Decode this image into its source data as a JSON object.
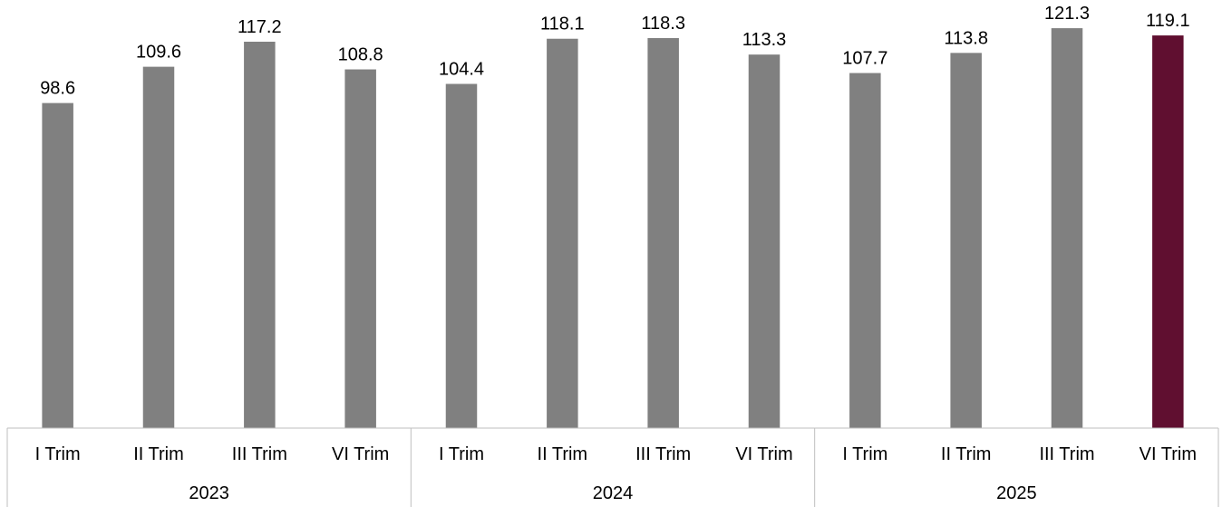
{
  "chart_data": {
    "type": "bar",
    "categories": [
      {
        "label": "I Trim",
        "year": "2023"
      },
      {
        "label": "II Trim",
        "year": "2023"
      },
      {
        "label": "III Trim",
        "year": "2023"
      },
      {
        "label": "VI Trim",
        "year": "2023"
      },
      {
        "label": "I Trim",
        "year": "2024"
      },
      {
        "label": "II Trim",
        "year": "2024"
      },
      {
        "label": "III Trim",
        "year": "2024"
      },
      {
        "label": "VI Trim",
        "year": "2024"
      },
      {
        "label": "I Trim",
        "year": "2025"
      },
      {
        "label": "II Trim",
        "year": "2025"
      },
      {
        "label": "III Trim",
        "year": "2025"
      },
      {
        "label": "VI Trim",
        "year": "2025"
      }
    ],
    "groups": [
      "2023",
      "2024",
      "2025"
    ],
    "values": [
      98.6,
      109.6,
      117.2,
      108.8,
      104.4,
      118.1,
      118.3,
      113.3,
      107.7,
      113.8,
      121.3,
      119.1
    ],
    "value_labels": [
      "98.6",
      "109.6",
      "117.2",
      "108.8",
      "104.4",
      "118.1",
      "118.3",
      "113.3",
      "107.7",
      "113.8",
      "121.3",
      "119.1"
    ],
    "highlight_index": 11,
    "ylim": [
      0,
      126
    ],
    "grid": false,
    "legend": "none",
    "title": "",
    "xlabel": "",
    "ylabel": "",
    "colors": {
      "bar": "#808080",
      "highlight": "#600F30",
      "axis_line": "#BFBFBF"
    }
  }
}
